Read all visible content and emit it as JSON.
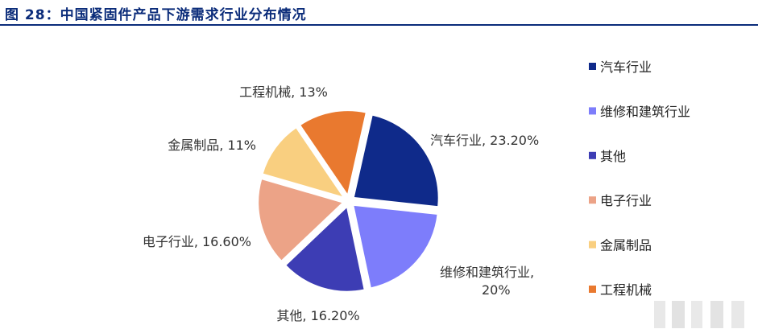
{
  "figure_title": "图 28：中国紧固件产品下游需求行业分布情况",
  "chart_data": {
    "type": "pie",
    "title": "图 28：中国紧固件产品下游需求行业分布情况",
    "legend_position": "right",
    "slices": [
      {
        "name": "汽车行业",
        "value": 23.2,
        "label": "汽车行业, 23.20%",
        "color": "#0f2a8a"
      },
      {
        "name": "维修和建筑行业",
        "value": 20.0,
        "label": "维修和建筑行业, 20%",
        "color": "#7d7dfb"
      },
      {
        "name": "其他",
        "value": 16.2,
        "label": "其他, 16.20%",
        "color": "#3d3db4"
      },
      {
        "name": "电子行业",
        "value": 16.6,
        "label": "电子行业, 16.60%",
        "color": "#eca387"
      },
      {
        "name": "金属制品",
        "value": 11.0,
        "label": "金属制品, 11%",
        "color": "#f9cf80"
      },
      {
        "name": "工程机械",
        "value": 13.0,
        "label": "工程机械, 13%",
        "color": "#e9792f"
      }
    ]
  }
}
